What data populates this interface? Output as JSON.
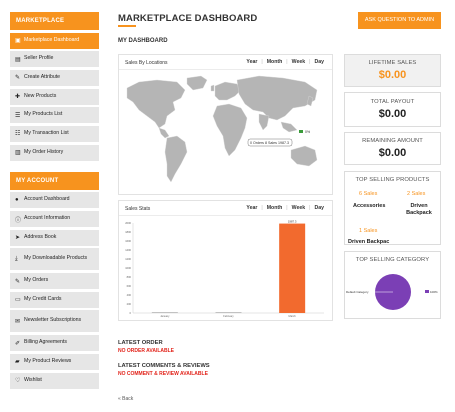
{
  "sidebar": {
    "marketplace_header": "MARKETPLACE",
    "marketplace_items": [
      {
        "label": "Marketplace Dashboard",
        "icon": "dashboard-icon",
        "glyph": "▣",
        "active": true
      },
      {
        "label": "Seller Profile",
        "icon": "profile-icon",
        "glyph": "▤"
      },
      {
        "label": "Create Attribute",
        "icon": "edit-icon",
        "glyph": "✎"
      },
      {
        "label": "New Products",
        "icon": "plus-icon",
        "glyph": "✚"
      },
      {
        "label": "My Products List",
        "icon": "list-icon",
        "glyph": "☰"
      },
      {
        "label": "My Transaction List",
        "icon": "list-icon",
        "glyph": "☷"
      },
      {
        "label": "My Order History",
        "icon": "bar-chart-icon",
        "glyph": "▥"
      }
    ],
    "account_header": "MY ACCOUNT",
    "account_items": [
      {
        "label": "Account Dashboard",
        "icon": "user-icon",
        "glyph": "●"
      },
      {
        "label": "Account Information",
        "icon": "info-icon",
        "glyph": "ⓘ"
      },
      {
        "label": "Address Book",
        "icon": "location-arrow-icon",
        "glyph": "➤"
      },
      {
        "label": "My Downloadable Products",
        "icon": "download-icon",
        "glyph": "⤓"
      },
      {
        "label": "My Orders",
        "icon": "orders-icon",
        "glyph": "✎"
      },
      {
        "label": "My Credit Cards",
        "icon": "credit-card-icon",
        "glyph": "▭"
      },
      {
        "label": "Newsletter Subscriptions",
        "icon": "envelope-icon",
        "glyph": "✉"
      },
      {
        "label": "Billing Agreements",
        "icon": "pencil-icon",
        "glyph": "✐"
      },
      {
        "label": "My Product Reviews",
        "icon": "comment-icon",
        "glyph": "▰"
      },
      {
        "label": "Wishlist",
        "icon": "heart-icon",
        "glyph": "♡"
      }
    ]
  },
  "header": {
    "title": "MARKETPLACE DASHBOARD",
    "ask_button": "ASK QUESTION TO ADMIN",
    "accent_color": "#f7931e"
  },
  "main": {
    "section_label": "MY DASHBOARD",
    "range_tabs": [
      "Year",
      "Month",
      "Week",
      "Day"
    ],
    "map_panel": {
      "title": "Sales By Locations",
      "tooltip": "0 Orders 8 Sales 1987.3",
      "legend": "0%"
    },
    "stats_panel": {
      "title": "Sales Stats"
    },
    "latest_order": {
      "heading": "LATEST ORDER",
      "empty_text": "NO ORDER AVAILABLE"
    },
    "latest_reviews": {
      "heading": "LATEST COMMENTS & REVIEWS",
      "empty_text": "NO COMMENT & REVIEW AVAILABLE"
    },
    "back_link": "« Back"
  },
  "chart_data": [
    {
      "type": "bar",
      "title": "Sales Stats",
      "categories": [
        "January",
        "February",
        "March"
      ],
      "values": [
        0,
        0,
        1987.3
      ],
      "ylim": [
        0,
        2000
      ],
      "bar_color": "#f26a2e"
    },
    {
      "type": "pie",
      "title": "TOP SELLING CATEGORY",
      "slices": [
        {
          "label": "Default Category",
          "value": 100
        }
      ],
      "legend": "100%",
      "colors": [
        "#7b3fb5"
      ]
    }
  ],
  "stats_y_ticks": [
    "2000",
    "1800",
    "1600",
    "1400",
    "1200",
    "1000",
    "800",
    "600",
    "400",
    "200",
    "0"
  ],
  "stats_bar_label": "1987.3",
  "category_label": "Default Category",
  "cards": {
    "lifetime_sales": {
      "label": "LIFETIME SALES",
      "value": "$0.00"
    },
    "total_payout": {
      "label": "TOTAL PAYOUT",
      "value": "$0.00"
    },
    "remaining_amount": {
      "label": "REMAINING AMOUNT",
      "value": "$0.00"
    },
    "top_products": {
      "label": "TOP SELLING PRODUCTS",
      "items": [
        {
          "sales": "6 Sales",
          "name": "Accessories"
        },
        {
          "sales": "2 Sales",
          "name": "Driven Backpack"
        },
        {
          "sales": "1 Sales",
          "name": "Driven Backpac"
        }
      ]
    },
    "top_category": {
      "label": "TOP SELLING CATEGORY"
    }
  }
}
